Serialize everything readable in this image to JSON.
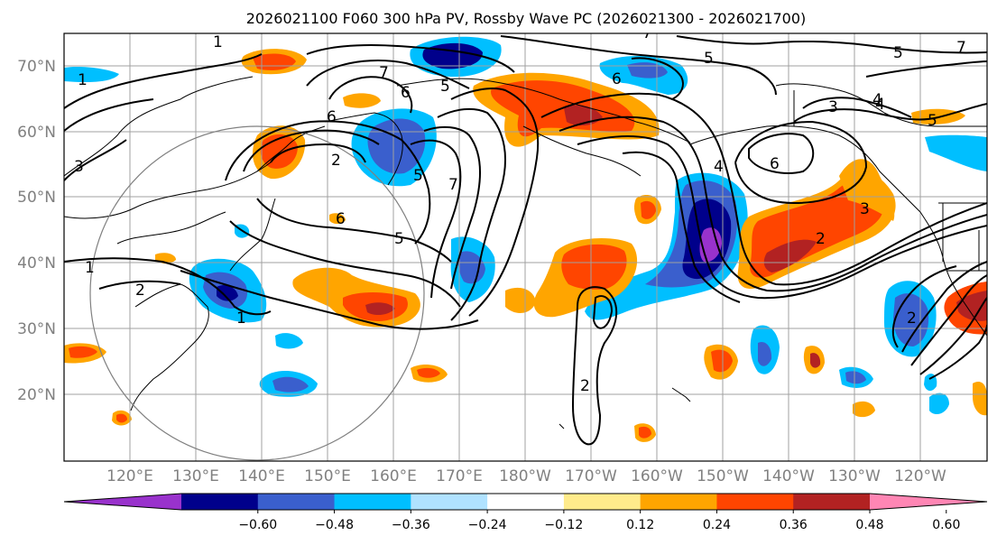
{
  "title": "2026021100 F060 300 hPa PV, Rossby Wave PC (2026021300 - 2026021700)",
  "lat_labels": [
    "70°N",
    "60°N",
    "50°N",
    "40°N",
    "30°N",
    "20°N"
  ],
  "lon_labels": [
    "120°E",
    "130°E",
    "140°E",
    "150°E",
    "160°E",
    "170°E",
    "180°W",
    "170°W",
    "160°W",
    "150°W",
    "140°W",
    "130°W",
    "120°W"
  ],
  "colorbar": {
    "colors": [
      "#9932cc",
      "#00008b",
      "#3a5fcd",
      "#00bfff",
      "#b0e2ff",
      "#ffffff",
      "#ffeb8b",
      "#ffa500",
      "#ff4500",
      "#b22222",
      "#ff86b4"
    ],
    "tick_labels": [
      "−0.60",
      "−0.48",
      "−0.36",
      "−0.24",
      "−0.12",
      "0.12",
      "0.24",
      "0.36",
      "0.48",
      "0.60"
    ]
  },
  "contour_labels": [
    "1",
    "2",
    "3",
    "5",
    "6",
    "7",
    "4",
    "5",
    "6",
    "7",
    "5",
    "6",
    "7",
    "3",
    "4",
    "5",
    "6",
    "2",
    "3",
    "4",
    "5",
    "2",
    "1",
    "6",
    "5",
    "2",
    "1",
    "2",
    "1",
    "7"
  ],
  "palette": {
    "neg_strong": "#00008b",
    "neg_mid": "#3a5fcd",
    "neg_weak": "#00bfff",
    "pos_weak": "#ffa500",
    "pos_mid": "#ff4500",
    "pos_strong": "#b22222"
  }
}
